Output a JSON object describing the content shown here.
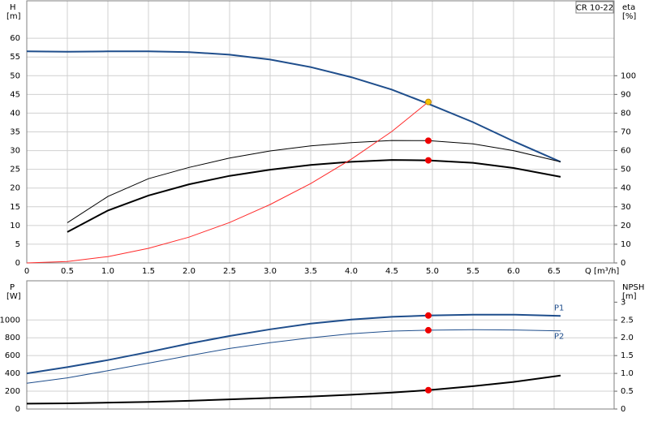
{
  "chart_data": [
    {
      "type": "line",
      "title": "CR 10-22",
      "ylabel": "H",
      "yunit": "[m]",
      "y2label": "eta",
      "y2unit": "[%]",
      "xlabel": "Q [m³/h]",
      "x": [
        0,
        0.5,
        1,
        1.5,
        2,
        2.5,
        3,
        3.5,
        4,
        4.5,
        4.95,
        5.5,
        6,
        6.58
      ],
      "xlim": [
        0,
        7.24
      ],
      "xticks": [
        0,
        0.5,
        {
          "value": 1,
          "label": "1.0"
        },
        1.5,
        {
          "value": 2,
          "label": "2.0"
        },
        2.5,
        {
          "value": 3,
          "label": "3.0"
        },
        3.5,
        {
          "value": 4,
          "label": "4.0"
        },
        4.5,
        {
          "value": 5,
          "label": "5.0"
        },
        5.5,
        {
          "value": 6,
          "label": "6.0"
        },
        6.5
      ],
      "ylim": [
        0,
        70
      ],
      "yticks": [
        0,
        5,
        10,
        15,
        20,
        25,
        30,
        35,
        40,
        45,
        50,
        55,
        60
      ],
      "y2lim": [
        0,
        140
      ],
      "y2ticks": [
        0,
        10,
        20,
        30,
        40,
        50,
        60,
        70,
        80,
        90,
        100
      ],
      "grid": true,
      "series": [
        {
          "color": "#1f4e8c",
          "width": 2,
          "values": [
            56.5,
            56.4,
            56.5,
            56.5,
            56.3,
            55.6,
            54.3,
            52.3,
            49.6,
            46.3,
            42.5,
            37.6,
            32.5,
            27.0
          ]
        },
        {
          "color": "#000000",
          "width": 1,
          "axis": "y2",
          "values": [
            null,
            21.5,
            35.5,
            45,
            51,
            56,
            59.8,
            62.5,
            64.3,
            65.4,
            65.3,
            63.6,
            60,
            54
          ]
        },
        {
          "color": "#000000",
          "width": 2,
          "axis": "y2",
          "values": [
            null,
            16.5,
            28,
            36,
            42,
            46.5,
            49.8,
            52.3,
            54,
            55,
            54.8,
            53.5,
            50.7,
            46
          ]
        },
        {
          "color": "#ff2a2a",
          "width": 1,
          "values": [
            0,
            0.4,
            1.7,
            3.9,
            6.9,
            10.8,
            15.6,
            21.2,
            27.7,
            35.1,
            43,
            null,
            null,
            null
          ]
        }
      ],
      "duty_points": [
        {
          "x": 4.95,
          "y": 43,
          "color": "#f5c400"
        },
        {
          "x": 4.95,
          "y": 65.3,
          "axis": "y2",
          "color": "#ee0000"
        },
        {
          "x": 4.95,
          "y": 54.8,
          "axis": "y2",
          "color": "#ee0000"
        }
      ]
    },
    {
      "type": "line",
      "ylabel": "P",
      "yunit": "[W]",
      "y2label": "NPSH",
      "y2unit": "[m]",
      "x": [
        0,
        0.5,
        1,
        1.5,
        2,
        2.5,
        3,
        3.5,
        4,
        4.5,
        4.95,
        5.5,
        6,
        6.58
      ],
      "xlim": [
        0,
        7.24
      ],
      "xticks": [
        0,
        0.5,
        1,
        1.5,
        2,
        2.5,
        3,
        3.5,
        4,
        4.5,
        5,
        5.5,
        6,
        6.5
      ],
      "xtick_labels": false,
      "ylim": [
        0,
        1440
      ],
      "yticks": [
        0,
        200,
        400,
        600,
        800,
        1000
      ],
      "y2lim": [
        0,
        3.6
      ],
      "y2ticks": [
        0,
        0.5,
        {
          "value": 1,
          "label": "1.0"
        },
        1.5,
        {
          "value": 2,
          "label": "2.0"
        },
        2.5,
        3
      ],
      "grid": true,
      "series": [
        {
          "name": "P1",
          "color": "#1f4e8c",
          "width": 2,
          "values": [
            400,
            470,
            550,
            640,
            735,
            820,
            895,
            960,
            1005,
            1035,
            1050,
            1060,
            1060,
            1045
          ]
        },
        {
          "name": "P2",
          "color": "#1f4e8c",
          "width": 1,
          "values": [
            290,
            350,
            430,
            515,
            600,
            680,
            745,
            800,
            845,
            875,
            885,
            890,
            888,
            878
          ]
        },
        {
          "color": "#000000",
          "width": 2,
          "axis": "y2",
          "values": [
            0.15,
            0.16,
            0.18,
            0.2,
            0.23,
            0.27,
            0.31,
            0.35,
            0.4,
            0.46,
            0.53,
            0.64,
            0.76,
            0.94
          ]
        }
      ],
      "duty_points": [
        {
          "x": 4.95,
          "y": 1050,
          "color": "#ee0000"
        },
        {
          "x": 4.95,
          "y": 885,
          "color": "#ee0000"
        },
        {
          "x": 4.95,
          "y": 0.53,
          "axis": "y2",
          "color": "#ee0000"
        }
      ]
    }
  ]
}
